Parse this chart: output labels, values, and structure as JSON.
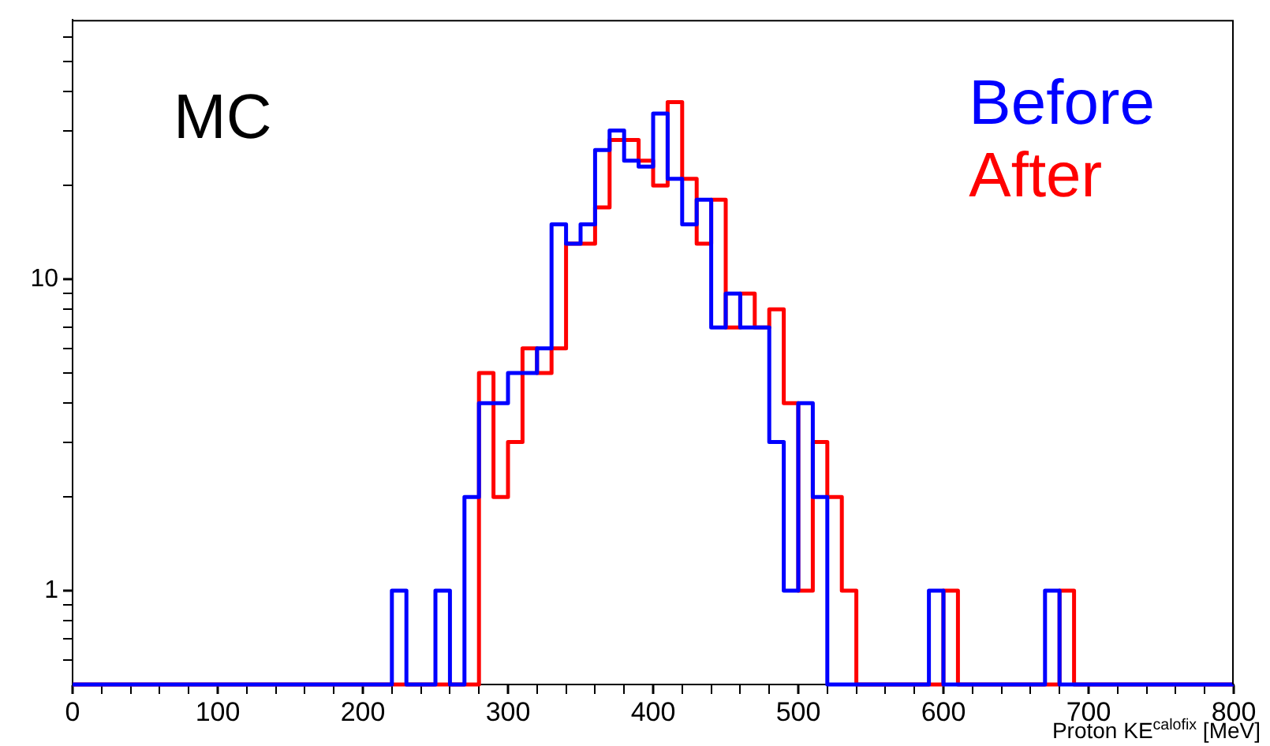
{
  "chart_data": {
    "type": "histogram",
    "xlabel": "Proton KE$^{calofix}$ [MeV]",
    "annotations": [
      "MC"
    ],
    "bins": [
      0,
      10,
      20,
      30,
      40,
      50,
      60,
      70,
      80,
      90,
      100,
      110,
      120,
      130,
      140,
      150,
      160,
      170,
      180,
      190,
      200,
      210,
      220,
      230,
      240,
      250,
      260,
      270,
      280,
      290,
      300,
      310,
      320,
      330,
      340,
      350,
      360,
      370,
      380,
      390,
      400,
      410,
      420,
      430,
      440,
      450,
      460,
      470,
      480,
      490,
      500,
      510,
      520,
      530,
      540,
      550,
      560,
      570,
      580,
      590,
      600,
      610,
      620,
      630,
      640,
      650,
      660,
      670,
      680,
      690,
      700,
      710,
      720,
      730,
      740,
      750,
      760,
      770,
      780,
      790,
      800
    ],
    "series": [
      {
        "name": "Before",
        "color": "#0000ff",
        "values": [
          null,
          null,
          null,
          null,
          null,
          null,
          null,
          null,
          null,
          null,
          null,
          null,
          null,
          null,
          null,
          null,
          null,
          null,
          null,
          null,
          null,
          null,
          1,
          null,
          null,
          1,
          null,
          2,
          4,
          4,
          5,
          5,
          6,
          15,
          13,
          15,
          26,
          30,
          24,
          23,
          34,
          21,
          15,
          18,
          7,
          9,
          7,
          7,
          3,
          1,
          4,
          2,
          null,
          null,
          null,
          null,
          null,
          null,
          null,
          1,
          null,
          null,
          null,
          null,
          null,
          null,
          null,
          1,
          null,
          null,
          null,
          null,
          null,
          null,
          null,
          null,
          null,
          null,
          null,
          null
        ]
      },
      {
        "name": "After",
        "color": "#ff0000",
        "values": [
          null,
          null,
          null,
          null,
          null,
          null,
          null,
          null,
          null,
          null,
          null,
          null,
          null,
          null,
          null,
          null,
          null,
          null,
          null,
          null,
          null,
          null,
          null,
          null,
          null,
          null,
          null,
          null,
          5,
          2,
          3,
          6,
          5,
          6,
          13,
          13,
          17,
          28,
          28,
          24,
          20,
          37,
          21,
          13,
          18,
          7,
          9,
          7,
          8,
          4,
          1,
          3,
          2,
          1,
          null,
          null,
          null,
          null,
          null,
          null,
          1,
          null,
          null,
          null,
          null,
          null,
          null,
          null,
          1,
          null,
          null,
          null,
          null,
          null,
          null,
          null,
          null,
          null,
          null,
          null
        ]
      }
    ],
    "log": "y",
    "legend": "top right",
    "xlim": [
      0,
      800
    ],
    "xticks": [
      0,
      {
        "value": 20,
        "label": null
      },
      {
        "value": 40,
        "label": null
      },
      {
        "value": 60,
        "label": null
      },
      {
        "value": 80,
        "label": null
      },
      100,
      {
        "value": 120,
        "label": null
      },
      {
        "value": 140,
        "label": null
      },
      {
        "value": 160,
        "label": null
      },
      {
        "value": 180,
        "label": null
      },
      200,
      {
        "value": 220,
        "label": null
      },
      {
        "value": 240,
        "label": null
      },
      {
        "value": 260,
        "label": null
      },
      {
        "value": 280,
        "label": null
      },
      300,
      {
        "value": 320,
        "label": null
      },
      {
        "value": 340,
        "label": null
      },
      {
        "value": 360,
        "label": null
      },
      {
        "value": 380,
        "label": null
      },
      400,
      {
        "value": 420,
        "label": null
      },
      {
        "value": 440,
        "label": null
      },
      {
        "value": 460,
        "label": null
      },
      {
        "value": 480,
        "label": null
      },
      500,
      {
        "value": 520,
        "label": null
      },
      {
        "value": 540,
        "label": null
      },
      {
        "value": 560,
        "label": null
      },
      {
        "value": 580,
        "label": null
      },
      600,
      {
        "value": 620,
        "label": null
      },
      {
        "value": 640,
        "label": null
      },
      {
        "value": 660,
        "label": null
      },
      {
        "value": 680,
        "label": null
      },
      700,
      {
        "value": 720,
        "label": null
      },
      {
        "value": 740,
        "label": null
      },
      {
        "value": 760,
        "label": null
      },
      {
        "value": 780,
        "label": null
      },
      800
    ],
    "ylim": [
      0.5,
      68
    ],
    "yticks": [
      {
        "value": 0.6,
        "label": null
      },
      {
        "value": 0.7,
        "label": null
      },
      {
        "value": 0.8,
        "label": null
      },
      {
        "value": 0.9,
        "label": null
      },
      1,
      {
        "value": 2,
        "label": null
      },
      {
        "value": 3,
        "label": null
      },
      {
        "value": 4,
        "label": null
      },
      {
        "value": 5,
        "label": null
      },
      {
        "value": 6,
        "label": null
      },
      {
        "value": 7,
        "label": null
      },
      {
        "value": 8,
        "label": null
      },
      {
        "value": 9,
        "label": null
      },
      10,
      {
        "value": 20,
        "label": null
      },
      {
        "value": 30,
        "label": null
      },
      {
        "value": 40,
        "label": null
      },
      {
        "value": 50,
        "label": null
      },
      {
        "value": 60,
        "label": null
      }
    ]
  }
}
